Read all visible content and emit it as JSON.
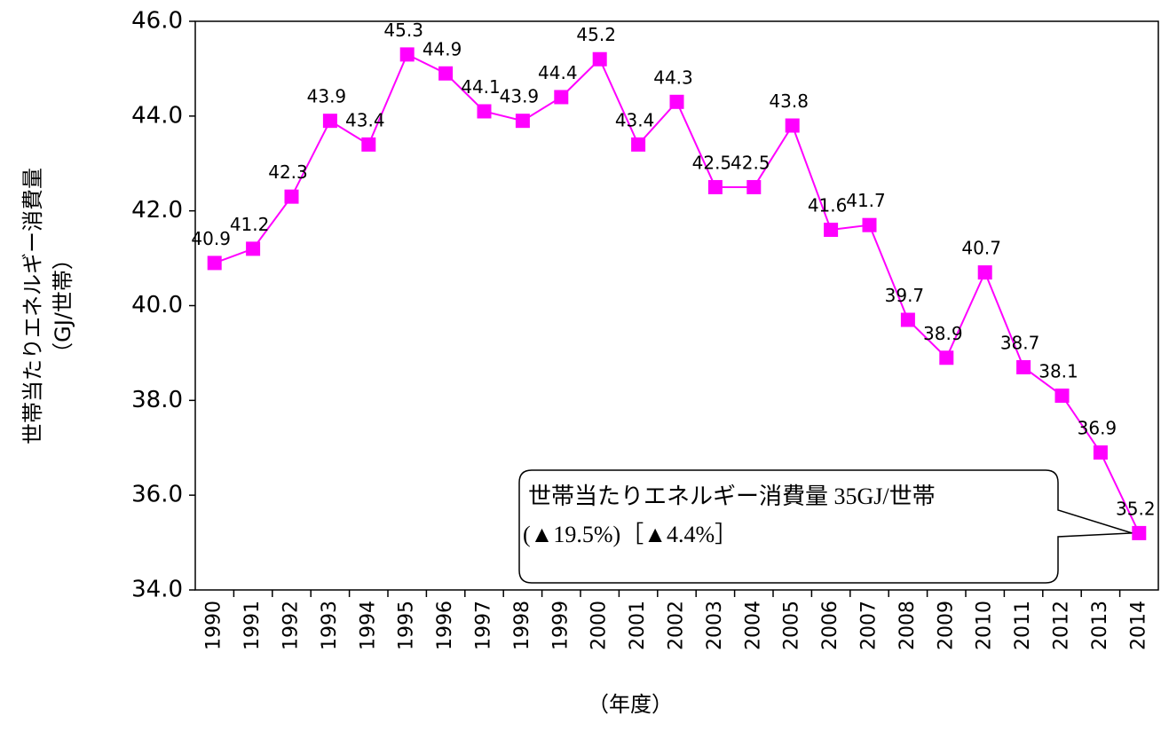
{
  "chart_data": {
    "type": "line",
    "y_label": [
      "世帯当たりエネルギー消費量",
      "（GJ/世帯）"
    ],
    "x_label": "（年度）",
    "categories": [
      "1990",
      "1991",
      "1992",
      "1993",
      "1994",
      "1995",
      "1996",
      "1997",
      "1998",
      "1999",
      "2000",
      "2001",
      "2002",
      "2003",
      "2004",
      "2005",
      "2006",
      "2007",
      "2008",
      "2009",
      "2010",
      "2011",
      "2012",
      "2013",
      "2014"
    ],
    "series": [
      {
        "color": "#ff00ff",
        "values": [
          40.9,
          41.2,
          42.3,
          43.9,
          43.4,
          45.3,
          44.9,
          44.1,
          43.9,
          44.4,
          45.2,
          43.4,
          44.3,
          42.5,
          42.5,
          43.8,
          41.6,
          41.7,
          39.7,
          38.9,
          40.7,
          38.7,
          38.1,
          36.9,
          35.2
        ]
      }
    ],
    "ylim": [
      34,
      46
    ],
    "yticks": [
      {
        "value": 34,
        "label": "34.0"
      },
      {
        "value": 36,
        "label": "36.0"
      },
      {
        "value": 38,
        "label": "38.0"
      },
      {
        "value": 40,
        "label": "40.0"
      },
      {
        "value": 42,
        "label": "42.0"
      },
      {
        "value": 44,
        "label": "44.0"
      },
      {
        "value": 46,
        "label": "46.0"
      }
    ],
    "annotation": [
      "世帯当たりエネルギー消費量  35GJ/世帯",
      "(▲19.5%)［▲4.4%］"
    ]
  }
}
